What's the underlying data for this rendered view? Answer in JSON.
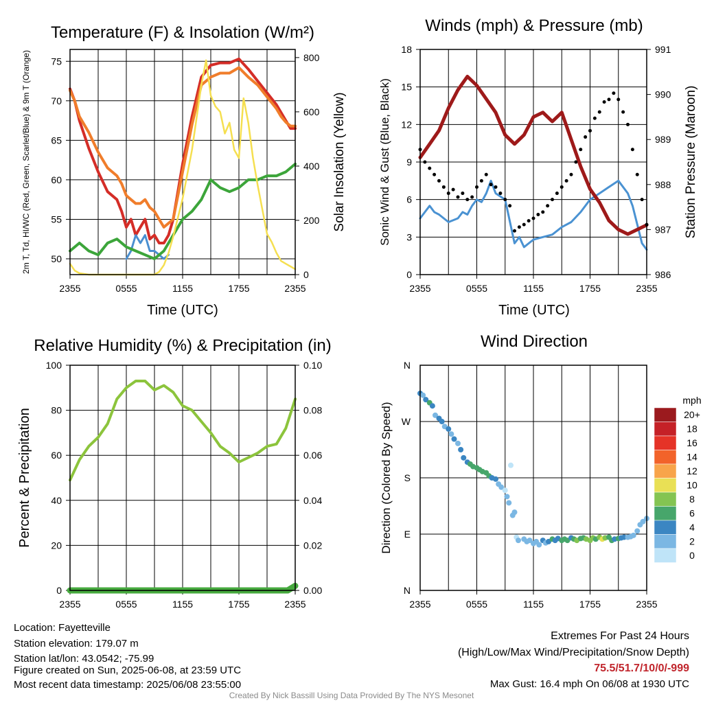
{
  "colors": {
    "temp": "#d42d27",
    "dewpoint": "#3ca53a",
    "heatindex": "#4a8fd0",
    "temp9m": "#f07d2b",
    "insolation": "#f5df50",
    "wind": "#4a92d2",
    "gust": "#000000",
    "pressure": "#9e1a1a",
    "rh": "#8cc43c",
    "precip": "#46aa3e"
  },
  "chart_data": [
    {
      "id": "temp",
      "type": "line",
      "title": "Temperature (F) & Insolation (W/m²)",
      "xlabel": "Time (UTC)",
      "ylabel": "2m T, Td, HI/WC (Red, Green, Scarlet/Blue) & 9m T (Orange)",
      "ylabel_right": "Solar Insolation (Yellow)",
      "x_ticks": [
        "2355",
        "0555",
        "1155",
        "1755",
        "2355"
      ],
      "ylim": [
        48,
        76.5
      ],
      "y_ticks": [
        50,
        55,
        60,
        65,
        70,
        75
      ],
      "ylim_right": [
        0,
        830
      ],
      "y_ticks_right": [
        0,
        200,
        400,
        600,
        800
      ],
      "series": [
        {
          "axis": "left",
          "key": "temp",
          "width": 4,
          "x": [
            0,
            0.5,
            1,
            2,
            3,
            4,
            5,
            5.5,
            6,
            6.5,
            7,
            7.5,
            8,
            8.5,
            9,
            9.5,
            10,
            10.5,
            11,
            12,
            13,
            14,
            15,
            16,
            17,
            18,
            19,
            20,
            21,
            22,
            22.5,
            23,
            23.5,
            24
          ],
          "y": [
            71.5,
            70,
            67.5,
            64,
            61,
            58.5,
            57.5,
            56,
            54,
            55,
            53,
            54,
            55,
            52.5,
            53,
            52,
            52,
            53,
            55,
            62,
            68,
            73,
            74.5,
            74.8,
            74.8,
            75.3,
            74,
            72.5,
            71,
            69.5,
            68.5,
            67.5,
            66.5,
            66.5
          ]
        },
        {
          "axis": "left",
          "key": "temp9m",
          "width": 4,
          "x": [
            0,
            0.5,
            1,
            2,
            3,
            4,
            5,
            5.5,
            6,
            6.5,
            7,
            7.5,
            8,
            8.5,
            9,
            9.5,
            10,
            10.5,
            11,
            12,
            13,
            14,
            15,
            16,
            17,
            18,
            19,
            20,
            21,
            22,
            22.5,
            23,
            23.5,
            24
          ],
          "y": [
            71.3,
            70,
            68,
            66,
            63.5,
            61.5,
            60.5,
            59.5,
            58,
            57.5,
            57,
            57,
            57.5,
            56.5,
            56,
            55,
            54,
            54.5,
            55,
            61,
            67,
            72,
            73,
            73.5,
            73.5,
            74.2,
            73,
            72,
            70.5,
            69,
            68,
            67.3,
            66.8,
            66.8
          ]
        },
        {
          "axis": "left",
          "key": "heatindex",
          "width": 3,
          "x": [
            6,
            6.5,
            7,
            7.5,
            8,
            8.5,
            9,
            9.5,
            10,
            10.5
          ],
          "y": [
            50,
            51,
            53,
            52,
            53,
            51,
            51,
            50.5,
            50,
            50.5
          ]
        },
        {
          "axis": "left",
          "key": "dewpoint",
          "width": 4,
          "x": [
            0,
            1,
            2,
            3,
            4,
            5,
            6,
            7,
            8,
            9,
            10,
            11,
            12,
            13,
            14,
            15,
            16,
            17,
            18,
            19,
            20,
            21,
            22,
            23,
            24
          ],
          "y": [
            51,
            52,
            51,
            50.5,
            52,
            52.5,
            51.5,
            51,
            50.5,
            50,
            51,
            53,
            55,
            56,
            57.5,
            60,
            59,
            58.5,
            59,
            60,
            60,
            60.5,
            60.5,
            61,
            62
          ]
        },
        {
          "axis": "right",
          "key": "insolation",
          "width": 2.5,
          "x": [
            0,
            0.5,
            1,
            2,
            4,
            6,
            8,
            9,
            9.5,
            10,
            10.5,
            11,
            12,
            13,
            14,
            14.5,
            15,
            15.5,
            16,
            16.5,
            17,
            17.5,
            18,
            18.5,
            19,
            19.5,
            20,
            21,
            21.5,
            22,
            22.5,
            23,
            23.5,
            24
          ],
          "y": [
            40,
            15,
            5,
            0,
            0,
            0,
            0,
            0,
            10,
            35,
            80,
            140,
            280,
            460,
            700,
            790,
            660,
            620,
            600,
            520,
            560,
            460,
            430,
            650,
            560,
            430,
            330,
            150,
            120,
            80,
            50,
            40,
            30,
            20
          ]
        }
      ]
    },
    {
      "id": "wind",
      "type": "line",
      "title": "Winds (mph) & Pressure (mb)",
      "xlabel": "Time (UTC)",
      "ylabel": "Sonic Wind & Gust (Blue, Black)",
      "ylabel_right": "Station Pressure (Maroon)",
      "x_ticks": [
        "2355",
        "0555",
        "1155",
        "1755",
        "2355"
      ],
      "ylim": [
        0,
        18
      ],
      "y_ticks": [
        0,
        3,
        6,
        9,
        12,
        15,
        18
      ],
      "ylim_right": [
        986,
        991
      ],
      "y_ticks_right": [
        986,
        987,
        988,
        989,
        990,
        991
      ],
      "series": [
        {
          "axis": "left",
          "key": "wind",
          "width": 3,
          "x": [
            0,
            0.5,
            1,
            1.5,
            2,
            3,
            4,
            4.5,
            5,
            5.5,
            6,
            6.5,
            7,
            7.5,
            8,
            9,
            10,
            10.5,
            11,
            12,
            13,
            14,
            15,
            16,
            17,
            18,
            19,
            20,
            21,
            22,
            22.5,
            23,
            23.5,
            24
          ],
          "y": [
            4.5,
            5,
            5.5,
            5,
            4.8,
            4.2,
            4.5,
            5,
            4.8,
            5.5,
            6,
            5.8,
            6.5,
            7.5,
            6.5,
            6,
            2.5,
            3,
            2.2,
            2.8,
            3,
            3.2,
            3.8,
            4.2,
            5,
            6,
            6.5,
            7,
            7.5,
            6.5,
            5.5,
            4,
            2.5,
            2
          ]
        },
        {
          "axis": "right",
          "key": "pressure",
          "width": 5,
          "x": [
            0,
            1,
            2,
            3,
            4,
            5,
            6,
            7,
            8,
            9,
            10,
            11,
            12,
            13,
            14,
            15,
            16,
            17,
            18,
            19,
            20,
            21,
            22,
            23,
            24
          ],
          "y": [
            988.6,
            988.9,
            989.2,
            989.7,
            990.1,
            990.4,
            990.2,
            989.9,
            989.6,
            989.1,
            988.9,
            989.1,
            989.5,
            989.6,
            989.4,
            989.6,
            989,
            988.4,
            987.9,
            987.6,
            987.2,
            987,
            986.9,
            987,
            987.1
          ]
        },
        {
          "axis": "left",
          "key": "gust",
          "type": "scatter",
          "width": 2.5,
          "x": [
            0,
            0.5,
            1,
            1.5,
            2,
            2.5,
            3,
            3.5,
            4,
            4.5,
            5,
            5.5,
            6,
            6.5,
            7,
            7.5,
            8,
            8.5,
            9,
            9.5,
            10,
            10.5,
            11,
            11.5,
            12,
            12.5,
            13,
            13.5,
            14,
            14.5,
            15,
            15.5,
            16,
            16.5,
            17,
            17.5,
            18,
            18.5,
            19,
            19.5,
            20,
            20.5,
            21,
            21.5,
            22,
            22.5,
            23,
            23.5,
            24
          ],
          "y": [
            10,
            9,
            8.5,
            8,
            7.5,
            7,
            6.5,
            6.8,
            6.2,
            6.5,
            6,
            6.2,
            7,
            7.5,
            8,
            7.2,
            7,
            6.5,
            6,
            5.5,
            3.5,
            3.8,
            4,
            4.3,
            4.5,
            4.8,
            5,
            5.5,
            6,
            6.5,
            7,
            7.5,
            8,
            9,
            10,
            11,
            11.5,
            12.5,
            13,
            13.8,
            14,
            14.5,
            14,
            13,
            12,
            10,
            8,
            6,
            4
          ]
        }
      ]
    },
    {
      "id": "rh",
      "type": "line",
      "title": "Relative Humidity (%) & Precipitation (in)",
      "xlabel": "",
      "ylabel": "Percent & Precipitation",
      "x_ticks": [
        "2355",
        "0555",
        "1155",
        "1755",
        "2355"
      ],
      "ylim": [
        0,
        100
      ],
      "y_ticks": [
        0,
        20,
        40,
        60,
        80,
        100
      ],
      "ylim_right": [
        0,
        0.1
      ],
      "y_ticks_right": [
        "0.00",
        "0.02",
        "0.04",
        "0.06",
        "0.08",
        "0.10"
      ],
      "series": [
        {
          "axis": "left",
          "key": "rh",
          "width": 4,
          "x": [
            0,
            1,
            2,
            3,
            4,
            5,
            6,
            7,
            8,
            9,
            10,
            11,
            12,
            13,
            14,
            15,
            16,
            17,
            18,
            19,
            20,
            21,
            22,
            23,
            24
          ],
          "y": [
            49,
            58,
            64,
            68,
            74,
            85,
            90,
            93,
            93,
            89,
            91,
            88,
            82,
            80,
            75,
            70,
            64,
            61,
            57,
            59,
            61,
            64,
            65,
            72,
            85
          ]
        },
        {
          "axis": "right",
          "key": "precip",
          "width": 9,
          "x": [
            0,
            23.2,
            24
          ],
          "y": [
            0,
            0,
            0.002
          ]
        }
      ]
    },
    {
      "id": "wdir",
      "type": "scatter",
      "title": "Wind Direction",
      "xlabel": "",
      "ylabel": "Direction (Colored By Speed)",
      "x_ticks": [
        "2355",
        "0555",
        "1155",
        "1755",
        "2355"
      ],
      "y_ticks": [
        "N",
        "E",
        "S",
        "W",
        "N"
      ],
      "ylim": [
        0,
        360
      ],
      "legend": {
        "title": "mph",
        "position": "right",
        "labels": [
          "20+",
          "18",
          "16",
          "14",
          "12",
          "10",
          "8",
          "6",
          "4",
          "2",
          "0"
        ],
        "colors": [
          "#9b1a1e",
          "#c52127",
          "#e53327",
          "#f2632a",
          "#f8a44a",
          "#e9e055",
          "#84c452",
          "#47a66b",
          "#3b86c2",
          "#7bb7e3",
          "#bfe4f8"
        ]
      },
      "points": {
        "x": [
          0,
          0.3,
          0.6,
          1,
          1.3,
          1.6,
          2,
          2.3,
          2.6,
          3,
          3.3,
          3.6,
          4,
          4.3,
          4.6,
          5,
          5.3,
          5.6,
          6,
          6.3,
          6.6,
          7,
          7.3,
          7.6,
          8,
          8.3,
          8.6,
          9,
          9.2,
          9.4,
          9.6,
          9.8,
          10,
          10.2,
          10.4,
          11,
          11.3,
          11.6,
          12,
          12.3,
          12.6,
          13,
          13.3,
          13.6,
          14,
          14.3,
          14.6,
          15,
          15.3,
          15.6,
          16,
          16.3,
          16.6,
          17,
          17.3,
          17.6,
          18,
          18.3,
          18.6,
          19,
          19.3,
          19.6,
          20,
          20.3,
          20.6,
          21,
          21.3,
          21.6,
          22,
          22.3,
          22.6,
          23,
          23.3,
          23.6,
          24
        ],
        "y": [
          315,
          312,
          305,
          300,
          295,
          280,
          275,
          270,
          262,
          258,
          250,
          242,
          235,
          225,
          212,
          205,
          202,
          198,
          196,
          193,
          190,
          188,
          183,
          180,
          178,
          170,
          165,
          160,
          150,
          140,
          200,
          120,
          125,
          85,
          80,
          82,
          78,
          80,
          75,
          78,
          73,
          80,
          76,
          78,
          82,
          80,
          83,
          80,
          82,
          80,
          84,
          82,
          80,
          83,
          84,
          82,
          80,
          84,
          82,
          85,
          82,
          84,
          85,
          80,
          82,
          83,
          84,
          85,
          85,
          86,
          88,
          95,
          105,
          110,
          115
        ],
        "speed": [
          4,
          3,
          5,
          6,
          4,
          3,
          4,
          4,
          3,
          4,
          3,
          4,
          3,
          4,
          4,
          5,
          6,
          6,
          7,
          6,
          6,
          7,
          6,
          5,
          4,
          3,
          2,
          1,
          2,
          3,
          1,
          2,
          3,
          1,
          2,
          2,
          3,
          2,
          3,
          2,
          3,
          4,
          3,
          5,
          6,
          5,
          4,
          6,
          7,
          6,
          5,
          7,
          8,
          7,
          6,
          8,
          9,
          8,
          7,
          9,
          10,
          8,
          7,
          6,
          5,
          6,
          5,
          4,
          3,
          2,
          3,
          2,
          3,
          2,
          3
        ]
      }
    }
  ],
  "footer": {
    "location": "Location: Fayetteville",
    "elevation": "Station elevation: 179.07 m",
    "latlon": "Station lat/lon: 43.0542; -75.99",
    "created": "Figure created on Sun, 2025-06-08, at 23:59 UTC",
    "recent": "Most recent data timestamp: 2025/06/08 23:55:00",
    "extremes_title": "Extremes For Past 24 Hours",
    "extremes_subtitle": "(High/Low/Max Wind/Precipitation/Snow Depth)",
    "extremes_values": "75.5/51.7/10/0/-999",
    "max_gust": "Max Gust: 16.4 mph On 06/08 at 1930 UTC",
    "credit": "Created By Nick Bassill Using Data Provided By The NYS Mesonet"
  }
}
